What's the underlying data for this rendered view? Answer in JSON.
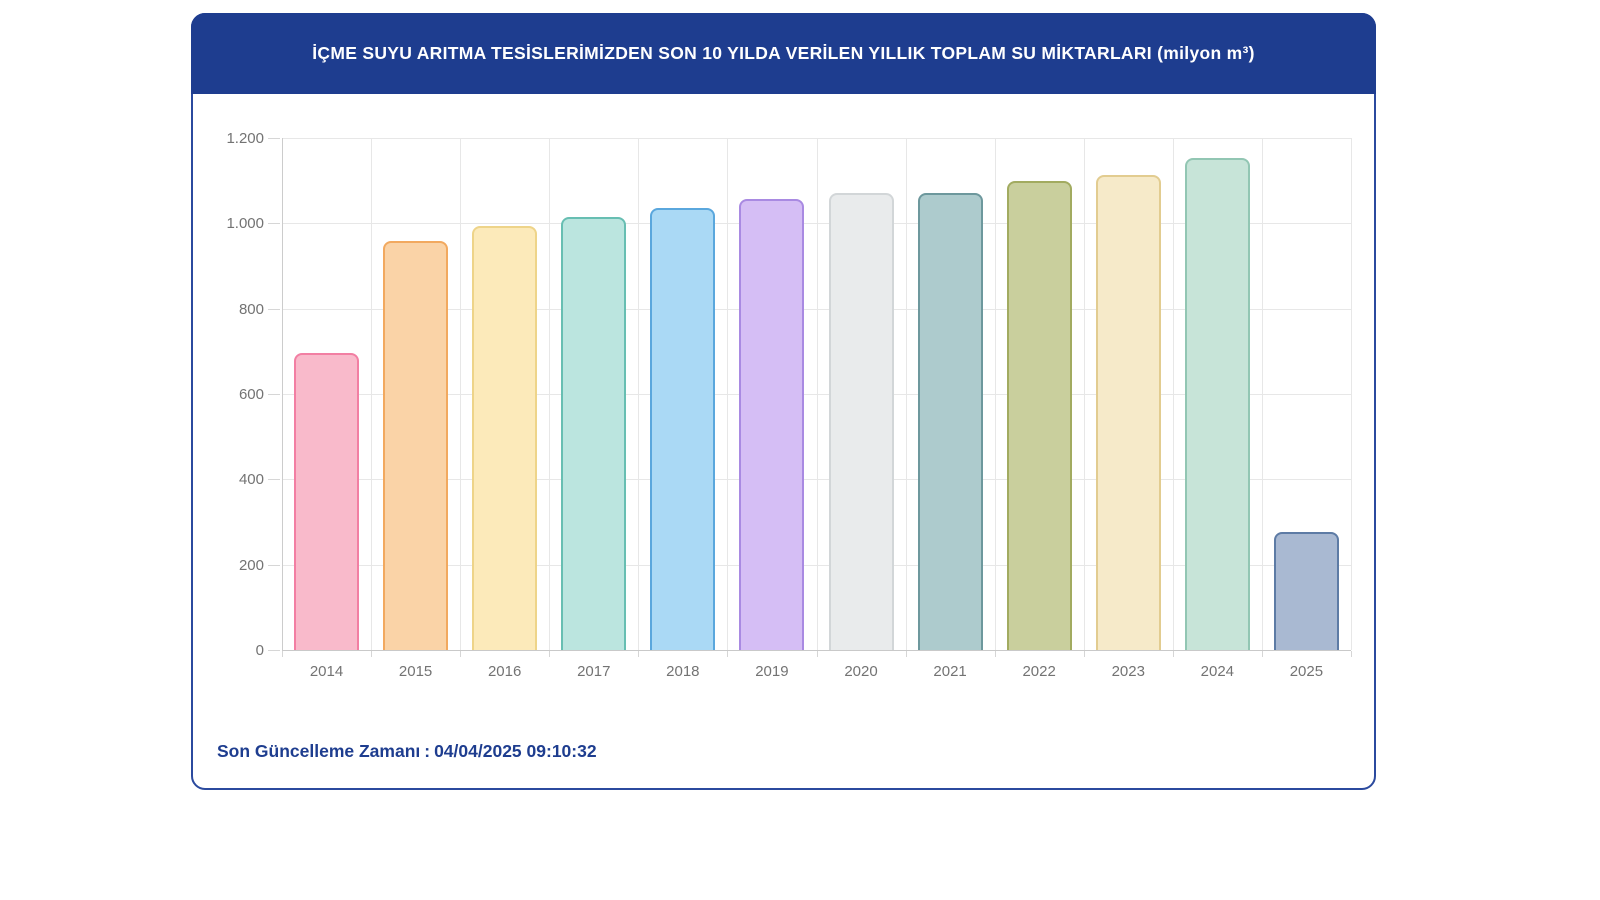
{
  "header": {
    "title": "İÇME SUYU ARITMA TESİSLERİMİZDEN SON 10 YILDA VERİLEN YILLIK TOPLAM SU MİKTARLARI (milyon m³)"
  },
  "footer": {
    "label": "Son Güncelleme Zamanı",
    "separator": ":",
    "value": "04/04/2025 09:10:32"
  },
  "colors": {
    "header_bg": "#1e3d8f",
    "card_border": "#2b4a9e",
    "footer_text": "#1e3d8f",
    "axis_text": "#737373",
    "grid_line": "#e7e7e7",
    "axis_line": "#c9c9c9"
  },
  "chart_data": {
    "type": "bar",
    "title": "İÇME SUYU ARITMA TESİSLERİMİZDEN SON 10 YILDA VERİLEN YILLIK TOPLAM SU MİKTARLARI (milyon m³)",
    "xlabel": "",
    "ylabel": "",
    "categories": [
      "2014",
      "2015",
      "2016",
      "2017",
      "2018",
      "2019",
      "2020",
      "2021",
      "2022",
      "2023",
      "2024",
      "2025"
    ],
    "values": [
      697,
      958,
      994,
      1016,
      1035,
      1057,
      1070,
      1072,
      1100,
      1113,
      1153,
      277
    ],
    "bar_fill_colors": [
      "#f9bacb",
      "#fad3a7",
      "#fceaba",
      "#bbe5df",
      "#aad9f5",
      "#d5bef5",
      "#e9ebec",
      "#adcbcd",
      "#c9cf9d",
      "#f6eac9",
      "#c7e4d8",
      "#a9b9d2"
    ],
    "bar_border_colors": [
      "#f27fa3",
      "#f2a95f",
      "#eed489",
      "#67beb2",
      "#5aa7dd",
      "#a98ae2",
      "#d2d6d8",
      "#6d989d",
      "#a2ab60",
      "#e2cc90",
      "#92c6b3",
      "#5d7ba5"
    ],
    "ylim": [
      0,
      1200
    ],
    "ytick_step": 200,
    "ytick_labels": [
      "0",
      "200",
      "400",
      "600",
      "800",
      "1.000",
      "1.200"
    ],
    "grid": true,
    "legend": "none"
  }
}
